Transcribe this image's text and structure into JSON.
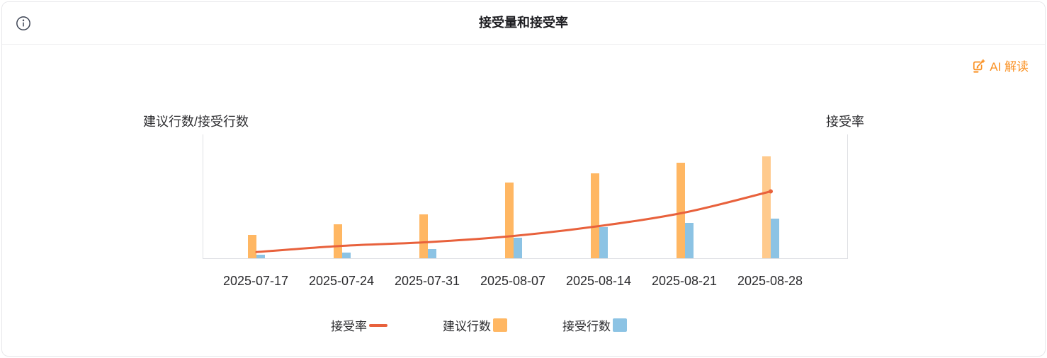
{
  "header": {
    "title": "接受量和接受率"
  },
  "ai_button": {
    "label": "AI 解读"
  },
  "chart_data": {
    "type": "bar",
    "title": "接受量和接受率",
    "categories": [
      "2025-07-17",
      "2025-07-24",
      "2025-07-31",
      "2025-08-07",
      "2025-08-14",
      "2025-08-21",
      "2025-08-28"
    ],
    "series": [
      {
        "name": "建议行数",
        "type": "bar",
        "axis": "left",
        "color": "#ffb763",
        "last_bar_color": "#ffca8d",
        "values": [
          33,
          48,
          62,
          107,
          120,
          135,
          144
        ]
      },
      {
        "name": "接受行数",
        "type": "bar",
        "axis": "left",
        "color": "#8cc3e4",
        "values": [
          5,
          8,
          13,
          29,
          44,
          50,
          56
        ]
      },
      {
        "name": "接受率",
        "type": "line",
        "axis": "right",
        "color": "#e8613c",
        "values": [
          5,
          10,
          13,
          18,
          26,
          37,
          54
        ]
      }
    ],
    "left_axis_name": "建议行数/接受行数",
    "right_axis_name": "接受率",
    "left_ylim": [
      0,
      175
    ],
    "right_ylim": [
      0,
      100
    ],
    "grid": false,
    "y_tick_labels_visible": false,
    "legend_position": "bottom"
  },
  "legend": {
    "items": [
      {
        "label": "接受率",
        "swatch": "line",
        "color": "#e8613c"
      },
      {
        "label": "建议行数",
        "swatch": "square",
        "color": "#ffb763"
      },
      {
        "label": "接受行数",
        "swatch": "square",
        "color": "#8cc3e4"
      }
    ]
  },
  "colors": {
    "accent_orange": "#fa9123",
    "bar_suggested": "#ffb763",
    "bar_suggested_last": "#ffca8d",
    "bar_accepted": "#8cc3e4",
    "rate_line": "#e8613c",
    "axis_line": "#dfe0e4"
  }
}
